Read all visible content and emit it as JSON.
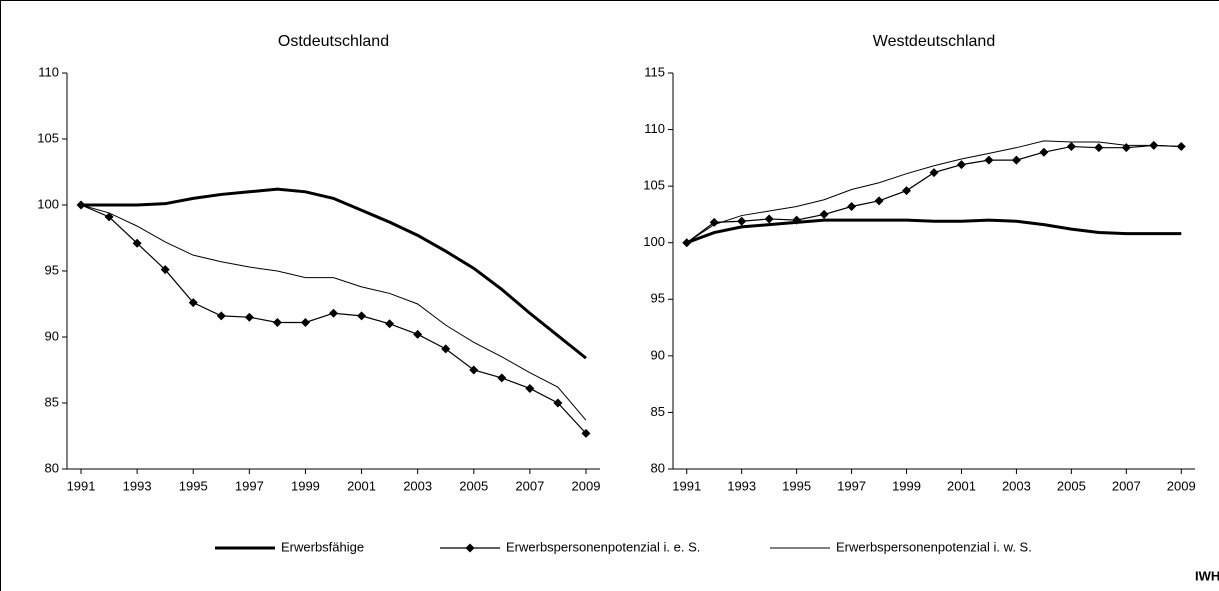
{
  "chart_data": [
    {
      "type": "line",
      "title": "Ostdeutschland",
      "x": [
        1991,
        1992,
        1993,
        1994,
        1995,
        1996,
        1997,
        1998,
        1999,
        2000,
        2001,
        2002,
        2003,
        2004,
        2005,
        2006,
        2007,
        2008,
        2009
      ],
      "xlim": [
        1990.5,
        2009.5
      ],
      "xticks": [
        1991,
        1993,
        1995,
        1997,
        1999,
        2001,
        2003,
        2005,
        2007,
        2009
      ],
      "ylim": [
        80,
        110
      ],
      "yticks": [
        80,
        85,
        90,
        95,
        100,
        105,
        110
      ],
      "series": [
        {
          "name": "Erwerbsfähige",
          "color": "#000000",
          "line_width": 3,
          "values": [
            100,
            100,
            100,
            100.1,
            100.5,
            100.8,
            101,
            101.2,
            101,
            100.5,
            99.6,
            98.7,
            97.7,
            96.5,
            95.2,
            93.6,
            91.8,
            90.1,
            88.4
          ]
        },
        {
          "name": "Erwerbspersonenpotenzial i. e. S.",
          "color": "#000000",
          "line_width": 1.2,
          "marker": "diamond",
          "values": [
            100,
            99.1,
            97.1,
            95.1,
            92.6,
            91.6,
            91.5,
            91.1,
            91.1,
            91.8,
            91.6,
            91,
            90.2,
            89.1,
            87.5,
            86.9,
            86.1,
            85,
            82.7
          ]
        },
        {
          "name": "Erwerbspersonenpotenzial i. w. S.",
          "color": "#000000",
          "line_width": 1,
          "values": [
            100,
            99.4,
            98.4,
            97.2,
            96.2,
            95.7,
            95.3,
            95,
            94.5,
            94.5,
            93.8,
            93.3,
            92.5,
            90.9,
            89.6,
            88.5,
            87.3,
            86.2,
            83.7
          ]
        }
      ]
    },
    {
      "type": "line",
      "title": "Westdeutschland",
      "x": [
        1991,
        1992,
        1993,
        1994,
        1995,
        1996,
        1997,
        1998,
        1999,
        2000,
        2001,
        2002,
        2003,
        2004,
        2005,
        2006,
        2007,
        2008,
        2009
      ],
      "xlim": [
        1990.5,
        2009.5
      ],
      "xticks": [
        1991,
        1993,
        1995,
        1997,
        1999,
        2001,
        2003,
        2005,
        2007,
        2009
      ],
      "ylim": [
        80,
        115
      ],
      "yticks": [
        80,
        85,
        90,
        95,
        100,
        105,
        110,
        115
      ],
      "series": [
        {
          "color": "#000000",
          "line_width": 3,
          "values": [
            100,
            100.9,
            101.4,
            101.6,
            101.8,
            102,
            102,
            102,
            102,
            101.9,
            101.9,
            102,
            101.9,
            101.6,
            101.2,
            100.9,
            100.8,
            100.8,
            100.8
          ]
        },
        {
          "color": "#000000",
          "line_width": 1.2,
          "marker": "diamond",
          "values": [
            100,
            101.8,
            101.9,
            102.1,
            102,
            102.5,
            103.2,
            103.7,
            104.6,
            106.2,
            106.9,
            107.3,
            107.3,
            108,
            108.5,
            108.4,
            108.4,
            108.6,
            108.5
          ]
        },
        {
          "color": "#000000",
          "line_width": 1,
          "values": [
            100,
            101.6,
            102.4,
            102.8,
            103.2,
            103.8,
            104.7,
            105.3,
            106.1,
            106.8,
            107.4,
            107.9,
            108.4,
            109,
            108.9,
            108.9,
            108.6,
            108.6,
            108.5
          ]
        }
      ]
    }
  ],
  "source": "IWH"
}
